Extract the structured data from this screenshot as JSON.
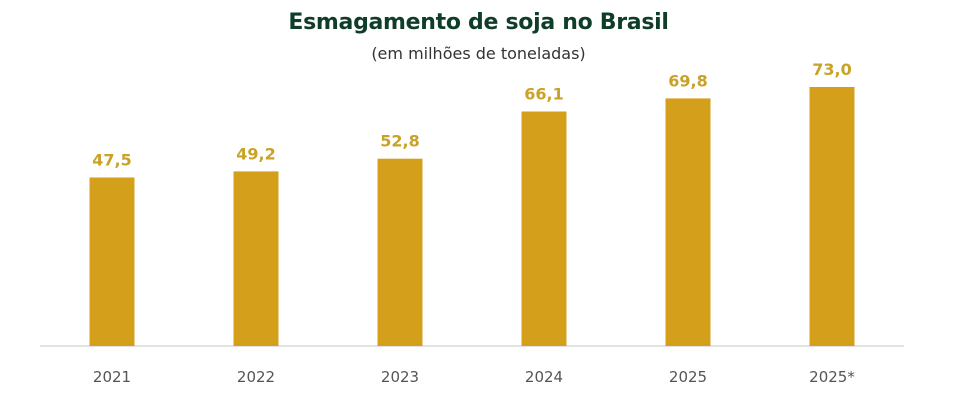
{
  "chart_data": {
    "type": "bar",
    "title": "Esmagamento de soja no Brasil",
    "subtitle": "(em milhões de toneladas)",
    "xlabel": "",
    "ylabel": "",
    "categories": [
      "2021",
      "2022",
      "2023",
      "2024",
      "2025",
      "2025*"
    ],
    "values": [
      47.5,
      49.2,
      52.8,
      66.1,
      69.8,
      73.0
    ],
    "data_labels": [
      "47,5",
      "49,2",
      "52,8",
      "66,1",
      "69,8",
      "73,0"
    ],
    "ylim": [
      0,
      73.0
    ],
    "grid": false,
    "legend": "none",
    "colors": {
      "bar": "#d4a01c",
      "label": "#c9a227",
      "title": "#0f3d2a",
      "axis": "#d9d9d9"
    }
  }
}
